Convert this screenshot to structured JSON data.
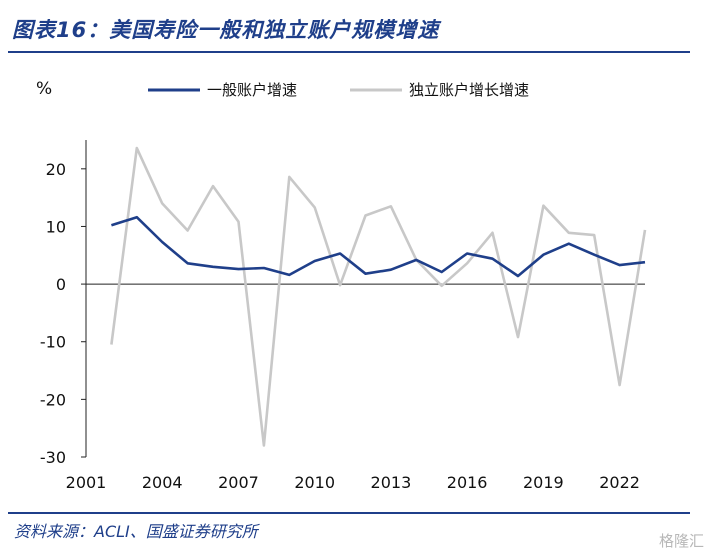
{
  "header": {
    "title": "图表16：美国寿险一般和独立账户规模增速"
  },
  "footer": {
    "source": "资料来源：ACLI、国盛证券研究所",
    "watermark": "格隆汇"
  },
  "chart_data": {
    "type": "line",
    "title": "",
    "xlabel": "",
    "ylabel": "%",
    "xlim": [
      2001,
      2023
    ],
    "ylim": [
      -30,
      25
    ],
    "x_ticks": [
      2001,
      2004,
      2007,
      2010,
      2013,
      2016,
      2019,
      2022
    ],
    "y_ticks": [
      20,
      10,
      0,
      -10,
      -20,
      -30
    ],
    "legend_position": "top",
    "grid": false,
    "x": [
      2002,
      2003,
      2004,
      2005,
      2006,
      2007,
      2008,
      2009,
      2010,
      2011,
      2012,
      2013,
      2014,
      2015,
      2016,
      2017,
      2018,
      2019,
      2020,
      2021,
      2022,
      2023
    ],
    "series": [
      {
        "name": "一般账户增速",
        "color": "#1f3f8a",
        "values": [
          10.2,
          11.6,
          7.3,
          3.6,
          3.0,
          2.6,
          2.8,
          1.6,
          4.0,
          5.3,
          1.8,
          2.5,
          4.2,
          2.1,
          5.3,
          4.4,
          1.4,
          5.1,
          7.0,
          5.1,
          3.3,
          3.8
        ]
      },
      {
        "name": "独立账户增长增速",
        "color": "#c8c8c8",
        "values": [
          -10.5,
          23.6,
          14.0,
          9.3,
          17.0,
          10.8,
          -28.0,
          18.6,
          13.3,
          -0.2,
          11.9,
          13.5,
          4.2,
          -0.3,
          3.6,
          8.9,
          -9.2,
          13.6,
          8.9,
          8.5,
          -17.5,
          9.4
        ]
      }
    ]
  }
}
